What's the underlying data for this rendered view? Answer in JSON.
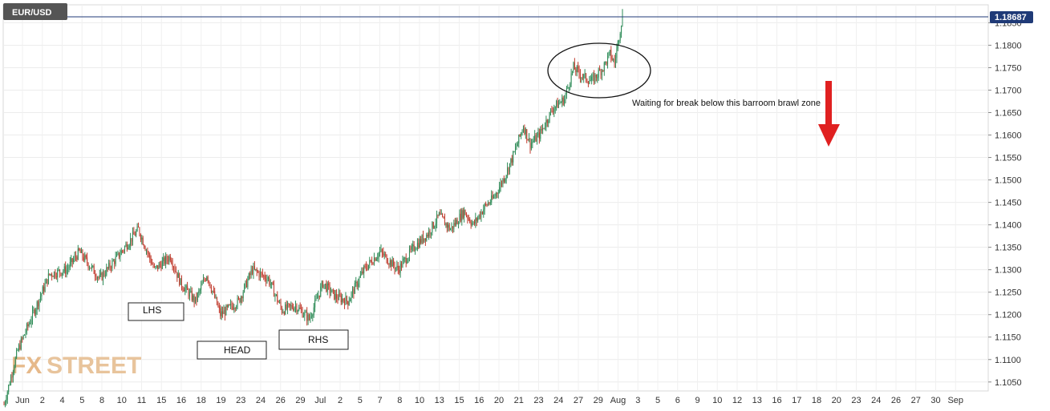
{
  "symbol": "EUR/USD",
  "current_price_label": "1.18687",
  "logo": {
    "text_fx": "FX",
    "text_street": "STREET"
  },
  "colors": {
    "up": "#2e8b57",
    "down": "#c0392b",
    "price_line": "#1f3a77",
    "arrow": "#e02020"
  },
  "annotations": {
    "lhs": "LHS",
    "head": "HEAD",
    "rhs": "RHS",
    "note": "Waiting for break below this barroom brawl zone"
  },
  "chart_data": {
    "type": "candlestick",
    "timeframe_hint": "4-hour bars",
    "ylim": [
      1.103,
      1.189
    ],
    "yticks": [
      1.105,
      1.11,
      1.115,
      1.12,
      1.125,
      1.13,
      1.135,
      1.14,
      1.145,
      1.15,
      1.155,
      1.16,
      1.165,
      1.17,
      1.175,
      1.18,
      1.185
    ],
    "ytick_labels": [
      "1.1050",
      "1.1100",
      "1.1150",
      "1.1200",
      "1.1250",
      "1.1300",
      "1.1350",
      "1.1400",
      "1.1450",
      "1.1500",
      "1.1550",
      "1.1600",
      "1.1650",
      "1.1700",
      "1.1750",
      "1.1800",
      "1.1850"
    ],
    "xticks": [
      "Jun",
      "2",
      "4",
      "5",
      "8",
      "10",
      "11",
      "15",
      "16",
      "18",
      "19",
      "23",
      "24",
      "26",
      "29",
      "Jul",
      "2",
      "5",
      "7",
      "8",
      "10",
      "13",
      "15",
      "16",
      "20",
      "21",
      "23",
      "24",
      "27",
      "29",
      "Aug",
      "3",
      "5",
      "6",
      "9",
      "10",
      "12",
      "13",
      "16",
      "17",
      "18",
      "20",
      "23",
      "24",
      "26",
      "27",
      "30",
      "Sep"
    ],
    "grid": true,
    "series": [
      {
        "anchors": [
          [
            0,
            1.1
          ],
          [
            12,
            1.112
          ],
          [
            40,
            1.129
          ],
          [
            55,
            1.13
          ],
          [
            66,
            1.134
          ],
          [
            84,
            1.128
          ],
          [
            100,
            1.133
          ],
          [
            118,
            1.139
          ],
          [
            132,
            1.13
          ],
          [
            146,
            1.133
          ],
          [
            155,
            1.127
          ],
          [
            168,
            1.123
          ],
          [
            178,
            1.129
          ],
          [
            190,
            1.12
          ],
          [
            206,
            1.123
          ],
          [
            218,
            1.13
          ],
          [
            232,
            1.128
          ],
          [
            244,
            1.121
          ],
          [
            256,
            1.122
          ],
          [
            268,
            1.119
          ],
          [
            280,
            1.127
          ],
          [
            291,
            1.124
          ],
          [
            302,
            1.123
          ],
          [
            316,
            1.13
          ],
          [
            330,
            1.134
          ],
          [
            346,
            1.13
          ],
          [
            360,
            1.135
          ],
          [
            372,
            1.138
          ],
          [
            382,
            1.142
          ],
          [
            392,
            1.139
          ],
          [
            404,
            1.143
          ],
          [
            412,
            1.14
          ],
          [
            422,
            1.144
          ],
          [
            430,
            1.146
          ],
          [
            440,
            1.151
          ],
          [
            448,
            1.156
          ],
          [
            456,
            1.162
          ],
          [
            462,
            1.158
          ],
          [
            470,
            1.16
          ],
          [
            476,
            1.163
          ],
          [
            482,
            1.166
          ],
          [
            492,
            1.168
          ],
          [
            500,
            1.175
          ],
          [
            508,
            1.173
          ],
          [
            516,
            1.172
          ],
          [
            526,
            1.175
          ],
          [
            532,
            1.178
          ],
          [
            536,
            1.176
          ],
          [
            540,
            1.182
          ],
          [
            543,
            1.1868
          ]
        ]
      }
    ]
  }
}
